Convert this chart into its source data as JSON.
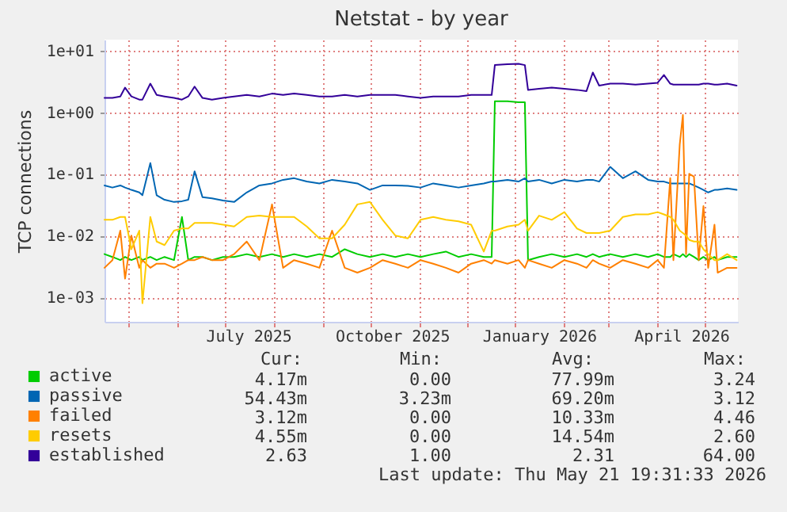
{
  "chart_data": {
    "type": "line",
    "title": "Netstat - by year",
    "ylabel": "TCP connections",
    "x": [
      "2025-04-16",
      "2025-04-21",
      "2025-04-26",
      "2025-04-29",
      "2025-05-03",
      "2025-05-08",
      "2025-05-10",
      "2025-05-15",
      "2025-05-19",
      "2025-05-24",
      "2025-05-30",
      "2025-06-04",
      "2025-06-08",
      "2025-06-12",
      "2025-06-17",
      "2025-06-23",
      "2025-06-30",
      "2025-07-07",
      "2025-07-15",
      "2025-07-23",
      "2025-07-31",
      "2025-08-07",
      "2025-08-14",
      "2025-08-22",
      "2025-08-30",
      "2025-09-07",
      "2025-09-15",
      "2025-09-23",
      "2025-10-01",
      "2025-10-09",
      "2025-10-17",
      "2025-10-25",
      "2025-11-02",
      "2025-11-10",
      "2025-11-18",
      "2025-11-26",
      "2025-12-04",
      "2025-12-12",
      "2025-12-17",
      "2025-12-19",
      "2025-12-27",
      "2026-01-03",
      "2026-01-07",
      "2026-01-09",
      "2026-01-16",
      "2026-01-24",
      "2026-02-01",
      "2026-02-09",
      "2026-02-15",
      "2026-02-19",
      "2026-02-23",
      "2026-03-02",
      "2026-03-10",
      "2026-03-18",
      "2026-03-26",
      "2026-04-01",
      "2026-04-05",
      "2026-04-09",
      "2026-04-11",
      "2026-04-15",
      "2026-04-17",
      "2026-04-19",
      "2026-04-21",
      "2026-04-24",
      "2026-04-27",
      "2026-04-30",
      "2026-05-03",
      "2026-05-07",
      "2026-05-09",
      "2026-05-15",
      "2026-05-21"
    ],
    "series": [
      {
        "name": "active",
        "color": "#00cc00",
        "values": [
          0.005,
          0.0045,
          0.004,
          0.0045,
          0.004,
          0.0045,
          0.004,
          0.0045,
          0.004,
          0.0045,
          0.004,
          0.02,
          0.004,
          0.0045,
          0.0045,
          0.004,
          0.0045,
          0.0045,
          0.005,
          0.0045,
          0.005,
          0.0045,
          0.005,
          0.0045,
          0.005,
          0.0045,
          0.006,
          0.005,
          0.0045,
          0.005,
          0.0045,
          0.005,
          0.0045,
          0.005,
          0.0055,
          0.0045,
          0.005,
          0.0045,
          0.0045,
          1.5,
          1.5,
          1.45,
          1.45,
          0.004,
          0.0045,
          0.005,
          0.0045,
          0.005,
          0.0045,
          0.005,
          0.0045,
          0.005,
          0.0045,
          0.005,
          0.0045,
          0.005,
          0.0045,
          0.0045,
          0.005,
          0.0045,
          0.005,
          0.0045,
          0.005,
          0.0045,
          0.004,
          0.0045,
          0.004,
          0.0045,
          0.004,
          0.0045,
          0.0045
        ]
      },
      {
        "name": "passive",
        "color": "#0066b3",
        "values": [
          0.065,
          0.06,
          0.065,
          0.06,
          0.055,
          0.05,
          0.045,
          0.15,
          0.045,
          0.038,
          0.035,
          0.036,
          0.038,
          0.11,
          0.042,
          0.04,
          0.037,
          0.035,
          0.05,
          0.065,
          0.07,
          0.08,
          0.085,
          0.075,
          0.07,
          0.08,
          0.075,
          0.07,
          0.055,
          0.065,
          0.065,
          0.064,
          0.06,
          0.07,
          0.065,
          0.06,
          0.065,
          0.07,
          0.075,
          0.075,
          0.08,
          0.075,
          0.085,
          0.075,
          0.08,
          0.07,
          0.08,
          0.075,
          0.08,
          0.08,
          0.075,
          0.13,
          0.085,
          0.11,
          0.08,
          0.075,
          0.075,
          0.07,
          0.07,
          0.07,
          0.07,
          0.07,
          0.07,
          0.065,
          0.06,
          0.055,
          0.05,
          0.055,
          0.055,
          0.058,
          0.055
        ]
      },
      {
        "name": "failed",
        "color": "#ff8000",
        "values": [
          0.003,
          0.004,
          0.012,
          0.002,
          0.01,
          0.003,
          0.004,
          0.003,
          0.0035,
          0.0035,
          0.003,
          0.0035,
          0.004,
          0.004,
          0.0045,
          0.004,
          0.004,
          0.005,
          0.008,
          0.004,
          0.032,
          0.003,
          0.004,
          0.0035,
          0.003,
          0.012,
          0.003,
          0.0025,
          0.003,
          0.004,
          0.0035,
          0.003,
          0.004,
          0.0035,
          0.003,
          0.0025,
          0.0035,
          0.004,
          0.0035,
          0.004,
          0.0035,
          0.004,
          0.003,
          0.004,
          0.0035,
          0.003,
          0.004,
          0.0035,
          0.003,
          0.004,
          0.0035,
          0.003,
          0.004,
          0.0035,
          0.003,
          0.004,
          0.003,
          0.085,
          0.004,
          0.3,
          0.9,
          0.005,
          0.1,
          0.09,
          0.004,
          0.03,
          0.003,
          0.015,
          0.0025,
          0.003,
          0.003
        ]
      },
      {
        "name": "resets",
        "color": "#ffcc00",
        "values": [
          0.018,
          0.018,
          0.02,
          0.02,
          0.006,
          0.012,
          0.0008,
          0.02,
          0.008,
          0.007,
          0.012,
          0.013,
          0.013,
          0.016,
          0.016,
          0.016,
          0.015,
          0.014,
          0.02,
          0.021,
          0.02,
          0.02,
          0.02,
          0.014,
          0.009,
          0.009,
          0.015,
          0.032,
          0.035,
          0.018,
          0.01,
          0.009,
          0.018,
          0.02,
          0.018,
          0.017,
          0.015,
          0.0055,
          0.012,
          0.012,
          0.014,
          0.015,
          0.018,
          0.012,
          0.021,
          0.018,
          0.024,
          0.013,
          0.011,
          0.011,
          0.011,
          0.012,
          0.02,
          0.022,
          0.022,
          0.024,
          0.022,
          0.02,
          0.018,
          0.012,
          0.011,
          0.01,
          0.0085,
          0.008,
          0.008,
          0.006,
          0.005,
          0.004,
          0.004,
          0.005,
          0.004
        ]
      },
      {
        "name": "established",
        "color": "#330099",
        "values": [
          1.7,
          1.7,
          1.8,
          2.5,
          1.8,
          1.6,
          1.6,
          2.9,
          1.9,
          1.8,
          1.7,
          1.6,
          1.8,
          2.6,
          1.7,
          1.6,
          1.7,
          1.8,
          1.9,
          1.8,
          2.0,
          1.9,
          2.0,
          1.9,
          1.8,
          1.8,
          1.9,
          1.8,
          1.9,
          1.9,
          1.9,
          1.8,
          1.7,
          1.8,
          1.8,
          1.8,
          1.9,
          1.9,
          1.9,
          5.8,
          6.0,
          6.1,
          5.8,
          2.3,
          2.4,
          2.5,
          2.4,
          2.3,
          2.2,
          4.4,
          2.7,
          2.9,
          2.9,
          2.8,
          2.9,
          3.0,
          4.0,
          2.9,
          2.8,
          2.8,
          2.8,
          2.8,
          2.8,
          2.8,
          2.8,
          2.9,
          2.9,
          2.8,
          2.8,
          2.9,
          2.7
        ]
      }
    ],
    "xlim": [
      "2025-04-16",
      "2026-05-21T19:31"
    ],
    "xticks": [
      {
        "value": "2025-05-01",
        "label": null
      },
      {
        "value": "2025-06-01",
        "label": null
      },
      {
        "value": "2025-07-01",
        "label": null
      },
      {
        "value": "2025-07-16",
        "label": "July 2025"
      },
      {
        "value": "2025-08-01",
        "label": null
      },
      {
        "value": "2025-09-01",
        "label": null
      },
      {
        "value": "2025-10-01",
        "label": null
      },
      {
        "value": "2025-10-15",
        "label": "October 2025"
      },
      {
        "value": "2025-11-01",
        "label": null
      },
      {
        "value": "2025-12-01",
        "label": null
      },
      {
        "value": "2026-01-01",
        "label": null
      },
      {
        "value": "2026-01-16",
        "label": "January 2026"
      },
      {
        "value": "2026-02-01",
        "label": null
      },
      {
        "value": "2026-03-01",
        "label": null
      },
      {
        "value": "2026-04-01",
        "label": null
      },
      {
        "value": "2026-04-16",
        "label": "April 2026"
      },
      {
        "value": "2026-05-01",
        "label": null
      }
    ],
    "ylim": [
      0.0004,
      15
    ],
    "yticks": [
      {
        "value": 0.001,
        "label": "1e-03"
      },
      {
        "value": 0.01,
        "label": "1e-02"
      },
      {
        "value": 0.1,
        "label": "1e-01"
      },
      {
        "value": 1,
        "label": "1e+00"
      },
      {
        "value": 10,
        "label": "1e+01"
      }
    ],
    "log": true,
    "grid": true,
    "legend": "bottom left",
    "annotations": [
      "Cur:",
      "Min:",
      "Avg:",
      "Max:",
      "4.17m",
      "0.00",
      "77.99m",
      "3.24",
      "54.43m",
      "3.23m",
      "69.20m",
      "3.12",
      "3.12m",
      "0.00",
      "10.33m",
      "4.46",
      "4.55m",
      "0.00",
      "14.54m",
      "2.60",
      "2.63",
      "1.00",
      "2.31",
      "64.00",
      "Last update: Thu May 21 19:31:33 2026"
    ]
  }
}
